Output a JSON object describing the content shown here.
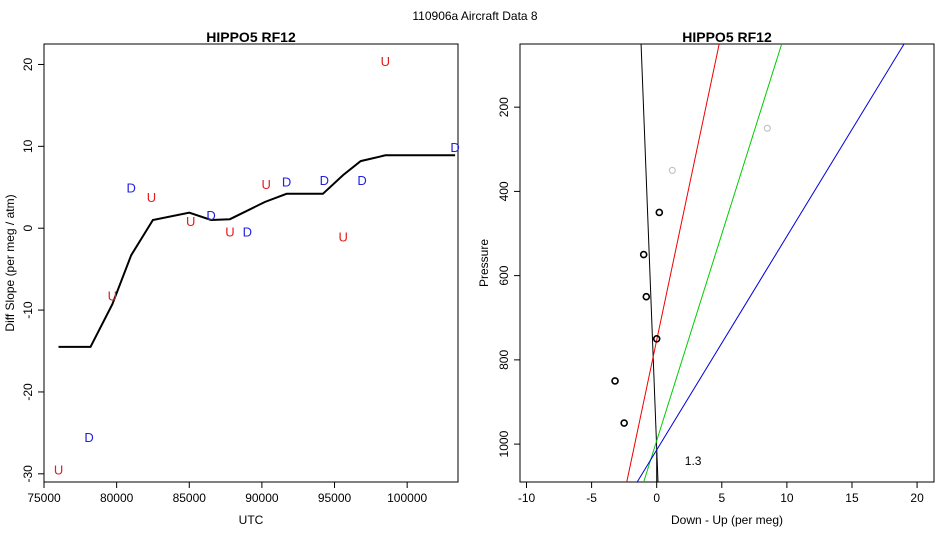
{
  "figure": {
    "suptitle": "110906a   Aircraft Data 8"
  },
  "chart_data": [
    {
      "type": "scatter",
      "title": "HIPPO5 RF12",
      "xlabel": "UTC",
      "ylabel": "Diff Slope (per meg / atm)",
      "xlim": [
        75000,
        103500
      ],
      "ylim": [
        -31,
        22.5
      ],
      "xticks": [
        75000,
        80000,
        85000,
        90000,
        95000,
        100000
      ],
      "yticks": [
        -30,
        -20,
        -10,
        0,
        10,
        20
      ],
      "line": {
        "name": "smoothed diff slope",
        "color": "#000000",
        "x": [
          76000,
          78200,
          79700,
          81000,
          82500,
          85000,
          86500,
          87800,
          90200,
          91700,
          94200,
          95600,
          96800,
          98500,
          100000,
          103300
        ],
        "y": [
          -14.5,
          -14.5,
          -9.3,
          -3.3,
          1.0,
          1.9,
          1.0,
          1.1,
          3.2,
          4.2,
          4.2,
          6.5,
          8.2,
          8.9,
          8.9,
          8.9
        ]
      },
      "points": [
        {
          "x": 76000,
          "y": -29.5,
          "label": "U"
        },
        {
          "x": 78100,
          "y": -25.5,
          "label": "D"
        },
        {
          "x": 79700,
          "y": -8.2,
          "label": "U"
        },
        {
          "x": 81000,
          "y": 5.0,
          "label": "D"
        },
        {
          "x": 82400,
          "y": 3.8,
          "label": "U"
        },
        {
          "x": 85100,
          "y": 0.9,
          "label": "U"
        },
        {
          "x": 86500,
          "y": 1.6,
          "label": "D"
        },
        {
          "x": 87800,
          "y": -0.4,
          "label": "U"
        },
        {
          "x": 89000,
          "y": -0.4,
          "label": "D"
        },
        {
          "x": 90300,
          "y": 5.4,
          "label": "U"
        },
        {
          "x": 91700,
          "y": 5.7,
          "label": "D"
        },
        {
          "x": 94300,
          "y": 5.9,
          "label": "D"
        },
        {
          "x": 95600,
          "y": -1.0,
          "label": "U"
        },
        {
          "x": 96900,
          "y": 5.9,
          "label": "D"
        },
        {
          "x": 98500,
          "y": 20.4,
          "label": "U"
        },
        {
          "x": 103300,
          "y": 9.9,
          "label": "D"
        }
      ],
      "label_colors": {
        "U": "#e41a1c",
        "D": "#1f1fe0"
      }
    },
    {
      "type": "scatter",
      "title": "HIPPO5 RF12",
      "xlabel": "Down - Up (per meg)",
      "ylabel": "Pressure",
      "xlim": [
        -10.5,
        21.3
      ],
      "ylim": [
        1090,
        50
      ],
      "y_reversed": true,
      "xticks": [
        -10,
        -5,
        0,
        5,
        10,
        15,
        20
      ],
      "yticks": [
        200,
        400,
        600,
        800,
        1000
      ],
      "annotation": "1.3",
      "annotation_pos": {
        "x": 2.8,
        "y": 1040
      },
      "points_black": [
        {
          "x": 0.2,
          "y": 450
        },
        {
          "x": -1.0,
          "y": 550
        },
        {
          "x": -0.8,
          "y": 650
        },
        {
          "x": 0.0,
          "y": 750
        },
        {
          "x": -3.2,
          "y": 850
        },
        {
          "x": -2.5,
          "y": 950
        }
      ],
      "points_gray": [
        {
          "x": 1.2,
          "y": 350
        },
        {
          "x": 8.5,
          "y": 250
        }
      ],
      "lines": [
        {
          "name": "black fit",
          "color": "#000000",
          "x1": -1.2,
          "y1": 50,
          "x2": 0.1,
          "y2": 1090
        },
        {
          "name": "red fit",
          "color": "#ee0000",
          "x1": -2.3,
          "y1": 1090,
          "x2": 4.8,
          "y2": 50
        },
        {
          "name": "green fit",
          "color": "#00cc00",
          "x1": -1.0,
          "y1": 1090,
          "x2": 9.6,
          "y2": 50
        },
        {
          "name": "blue fit",
          "color": "#0000dd",
          "x1": -1.5,
          "y1": 1090,
          "x2": 19.0,
          "y2": 50
        },
        {
          "name": "zero line",
          "color": "#000000",
          "x1": 0,
          "y1": 1020,
          "x2": 0,
          "y2": 1090
        }
      ]
    }
  ]
}
